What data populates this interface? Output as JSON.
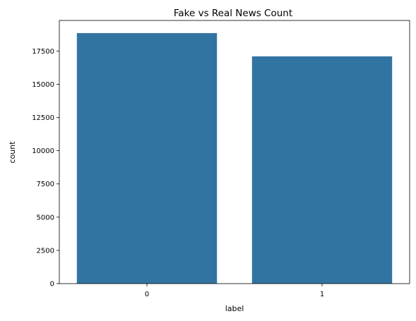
{
  "chart_data": {
    "type": "bar",
    "title": "Fake vs Real News Count",
    "xlabel": "label",
    "ylabel": "count",
    "categories": [
      "0",
      "1"
    ],
    "values": [
      18850,
      17100
    ],
    "ylim": [
      0,
      19800
    ],
    "yticks": [
      0,
      2500,
      5000,
      7500,
      10000,
      12500,
      15000,
      17500
    ],
    "ytick_labels": [
      "0",
      "2500",
      "5000",
      "7500",
      "10000",
      "12500",
      "15000",
      "17500"
    ],
    "bar_color": "#3274a1",
    "grid": false,
    "legend": "none"
  }
}
